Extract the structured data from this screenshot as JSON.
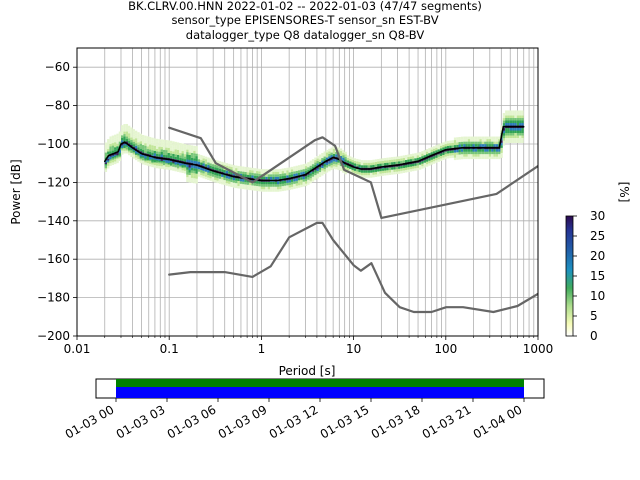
{
  "title_lines": [
    "BK.CLRV.00.HNN   2022-01-02 -- 2022-01-03  (47/47 segments)",
    "sensor_type EPISENSORES-T sensor_sn EST-BV",
    "datalogger_type Q8 datalogger_sn Q8-BV"
  ],
  "colorbar": {
    "label": "[%]",
    "ticks": [
      "0",
      "5",
      "10",
      "15",
      "20",
      "25",
      "30"
    ],
    "range": [
      0,
      30
    ],
    "colormap": [
      "#ffffff",
      "#d9f0a3",
      "#78c679",
      "#31a354",
      "#2c7fb8",
      "#253494",
      "#2d0a4e"
    ]
  },
  "timeline": {
    "tick_labels": [
      "01-03 00",
      "01-03 03",
      "01-03 06",
      "01-03 09",
      "01-03 12",
      "01-03 15",
      "01-03 18",
      "01-03 21",
      "01-04 00"
    ],
    "coverage_color": "#008000",
    "data_color": "#0000ff"
  },
  "chart_data": {
    "type": "line",
    "xlabel": "Period [s]",
    "ylabel": "Power [dB]",
    "xscale": "log",
    "xlim": [
      0.01,
      1000
    ],
    "ylim": [
      -200,
      -50
    ],
    "x_tick_labels": [
      "0.01",
      "0.1",
      "1",
      "10",
      "100",
      "1000"
    ],
    "y_tick_labels": [
      "−200",
      "−180",
      "−160",
      "−140",
      "−120",
      "−100",
      "−80",
      "−60"
    ],
    "grid": true,
    "series": [
      {
        "role": "mode",
        "color": "#000000",
        "points": [
          [
            0.02,
            -109
          ],
          [
            0.022,
            -106
          ],
          [
            0.025,
            -105
          ],
          [
            0.028,
            -104
          ],
          [
            0.03,
            -100
          ],
          [
            0.033,
            -99
          ],
          [
            0.04,
            -102
          ],
          [
            0.05,
            -105
          ],
          [
            0.07,
            -107
          ],
          [
            0.1,
            -108
          ],
          [
            0.15,
            -110
          ],
          [
            0.2,
            -111
          ],
          [
            0.3,
            -114
          ],
          [
            0.5,
            -117
          ],
          [
            0.7,
            -118
          ],
          [
            1,
            -119
          ],
          [
            1.5,
            -119
          ],
          [
            2,
            -118
          ],
          [
            3,
            -116
          ],
          [
            4,
            -112
          ],
          [
            5,
            -109
          ],
          [
            6,
            -107
          ],
          [
            7,
            -108
          ],
          [
            8,
            -110
          ],
          [
            10,
            -112
          ],
          [
            12,
            -113
          ],
          [
            15,
            -113
          ],
          [
            20,
            -112
          ],
          [
            30,
            -111
          ],
          [
            50,
            -109
          ],
          [
            70,
            -106
          ],
          [
            100,
            -103
          ],
          [
            150,
            -102
          ],
          [
            200,
            -102
          ],
          [
            300,
            -102
          ],
          [
            380,
            -102
          ],
          [
            420,
            -91
          ],
          [
            700,
            -91
          ]
        ]
      },
      {
        "role": "noise_model_high",
        "color": "#666666",
        "points": [
          [
            0.1,
            -91.5
          ],
          [
            0.22,
            -97
          ],
          [
            0.32,
            -110
          ],
          [
            0.8,
            -120
          ],
          [
            3.8,
            -98
          ],
          [
            4.6,
            -96.5
          ],
          [
            6.3,
            -101
          ],
          [
            7.9,
            -113.5
          ],
          [
            15.4,
            -120
          ],
          [
            20,
            -138.5
          ],
          [
            354.8,
            -126
          ],
          [
            1000,
            -111.5
          ]
        ]
      },
      {
        "role": "noise_model_low",
        "color": "#666666",
        "points": [
          [
            0.1,
            -168
          ],
          [
            0.17,
            -166.7
          ],
          [
            0.4,
            -166.7
          ],
          [
            0.8,
            -169.2
          ],
          [
            1.26,
            -163.7
          ],
          [
            2,
            -148.6
          ],
          [
            4,
            -141.1
          ],
          [
            4.6,
            -141.1
          ],
          [
            6,
            -150
          ],
          [
            10,
            -163.1
          ],
          [
            12,
            -166
          ],
          [
            15.6,
            -162.1
          ],
          [
            21.9,
            -177.5
          ],
          [
            31.6,
            -185
          ],
          [
            45,
            -187.5
          ],
          [
            70,
            -187.5
          ],
          [
            101,
            -185
          ],
          [
            154,
            -185
          ],
          [
            328,
            -187.5
          ],
          [
            600,
            -184.4
          ],
          [
            1000,
            -178
          ]
        ]
      }
    ]
  }
}
